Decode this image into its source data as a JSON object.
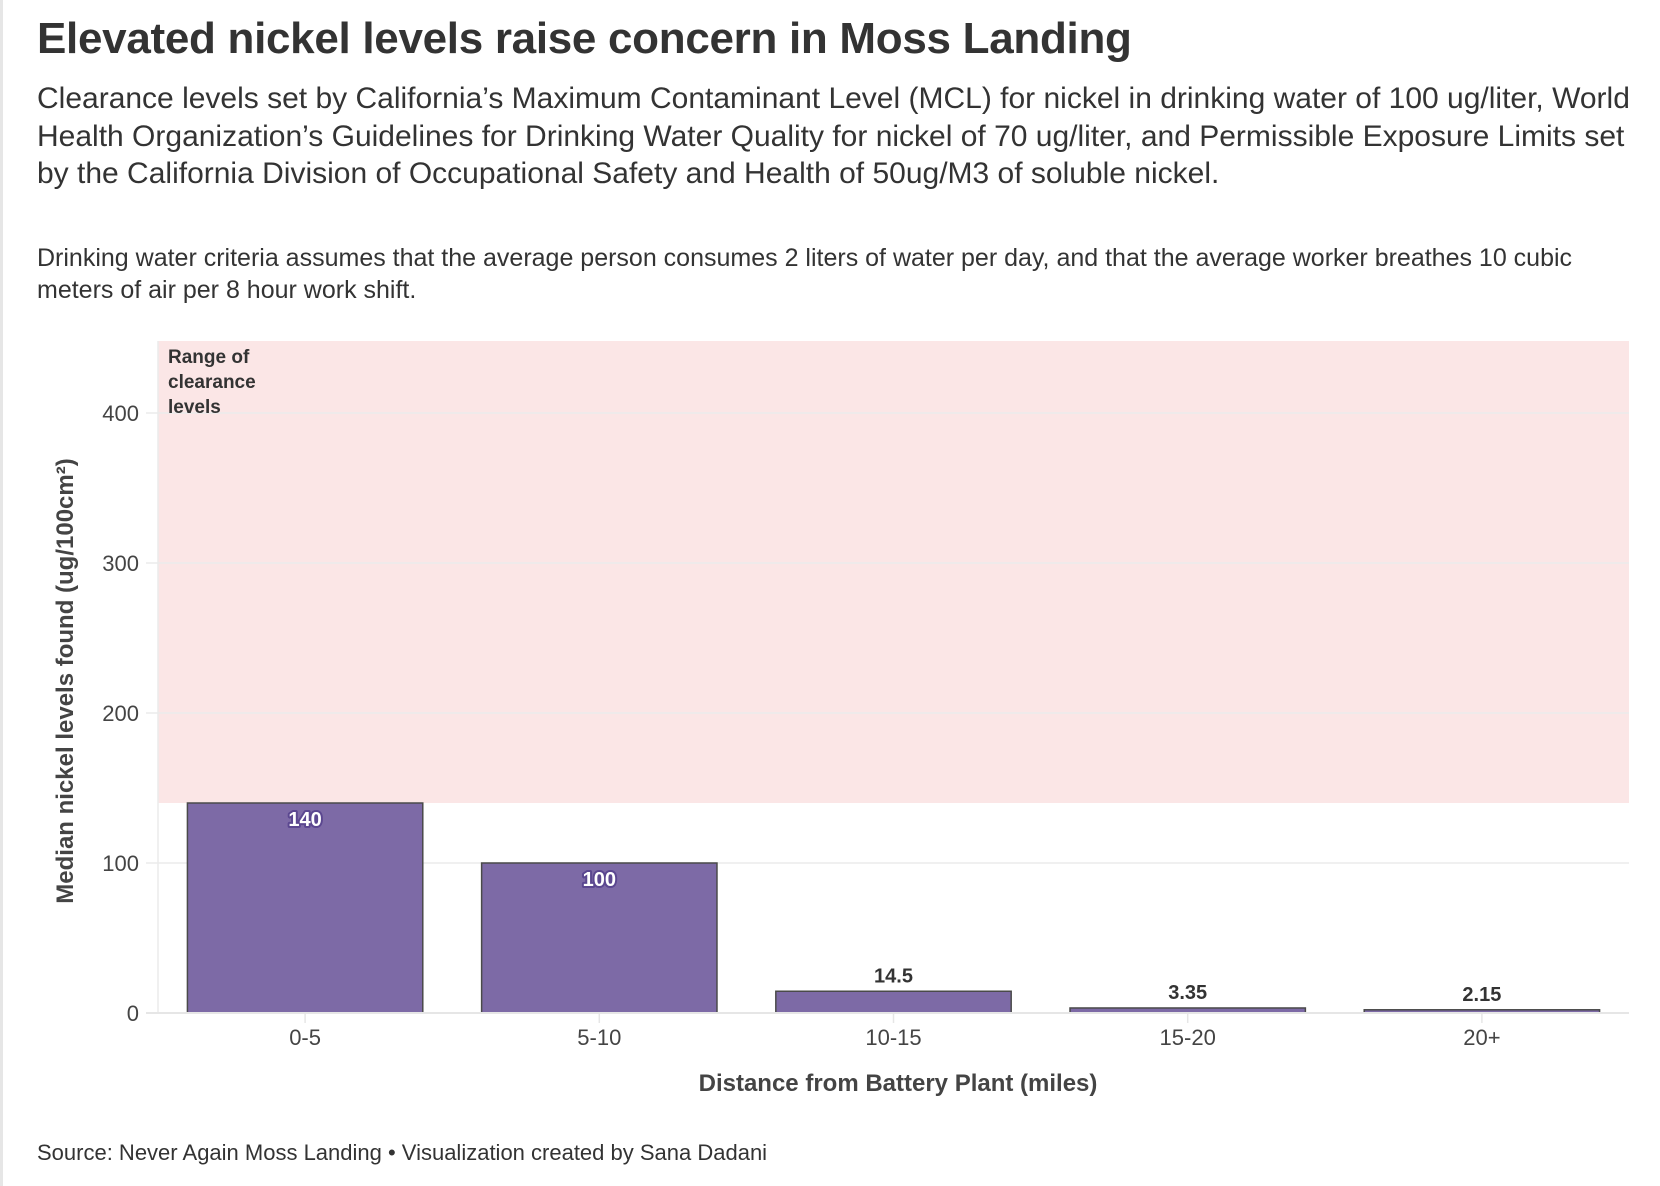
{
  "header": {
    "title": "Elevated nickel levels raise concern in Moss Landing",
    "subtitle": "Clearance levels set by California’s Maximum Contaminant Level (MCL) for nickel in drinking water of 100 ug/liter, World Health Organization’s Guidelines for Drinking Water Quality for nickel of 70 ug/liter, and Permissible Exposure Limits set by the California Division of Occupational Safety and Health of 50ug/M3 of soluble nickel.",
    "note": "Drinking water criteria assumes that the average person consumes 2 liters of water per day, and that the average worker breathes 10 cubic meters of air per 8 hour work shift."
  },
  "footer": {
    "source": "Source: Never Again Moss Landing • Visualization created by Sana Dadani"
  },
  "chart_data": {
    "type": "bar",
    "title": "Elevated nickel levels raise concern in Moss Landing",
    "xlabel": "Distance from Battery Plant (miles)",
    "ylabel": "Median nickel levels found (ug/100cm²)",
    "categories": [
      "0-5",
      "5-10",
      "10-15",
      "15-20",
      "20+"
    ],
    "values": [
      140,
      100,
      14.5,
      3.35,
      2.15
    ],
    "value_labels": [
      "140",
      "100",
      "14.5",
      "3.35",
      "2.15"
    ],
    "ylim": [
      0,
      448
    ],
    "yticks": [
      0,
      100,
      200,
      300,
      400
    ],
    "grid": true,
    "shaded_band": {
      "label_lines": [
        "Range of",
        "clearance",
        "levels"
      ],
      "from": 140,
      "to": 448
    },
    "colors": {
      "bar_fill": "#7d6aa6",
      "bar_stroke": "#4a4a4a",
      "band_fill": "#fbe6e6",
      "grid": "#ebebeb"
    }
  }
}
